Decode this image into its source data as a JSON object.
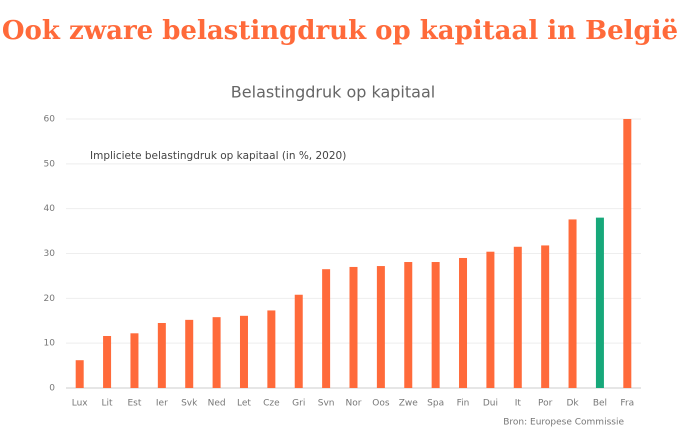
{
  "headline": "Ook zware belastingdruk op kapitaal in België",
  "chart_data": {
    "type": "bar",
    "title": "Belastingdruk op kapitaal",
    "annotation": "Impliciete belastingdruk op kapitaal (in %, 2020)",
    "source": "Bron: Europese Commissie",
    "categories": [
      "Lux",
      "Lit",
      "Est",
      "Ier",
      "Svk",
      "Ned",
      "Let",
      "Cze",
      "Gri",
      "Svn",
      "Nor",
      "Oos",
      "Zwe",
      "Spa",
      "Fin",
      "Dui",
      "It",
      "Por",
      "Dk",
      "Bel",
      "Fra"
    ],
    "values": [
      6.2,
      11.6,
      12.2,
      14.5,
      15.2,
      15.8,
      16.1,
      17.3,
      20.8,
      26.5,
      27.0,
      27.2,
      28.1,
      28.1,
      29.0,
      30.4,
      31.5,
      31.8,
      37.6,
      38.0,
      60.0
    ],
    "colors": [
      "#ff6a3a",
      "#ff6a3a",
      "#ff6a3a",
      "#ff6a3a",
      "#ff6a3a",
      "#ff6a3a",
      "#ff6a3a",
      "#ff6a3a",
      "#ff6a3a",
      "#ff6a3a",
      "#ff6a3a",
      "#ff6a3a",
      "#ff6a3a",
      "#ff6a3a",
      "#ff6a3a",
      "#ff6a3a",
      "#ff6a3a",
      "#ff6a3a",
      "#ff6a3a",
      "#17a87a",
      "#ff6a3a"
    ],
    "ylim": [
      0,
      60
    ],
    "yticks": [
      0,
      10,
      20,
      30,
      40,
      50,
      60
    ],
    "grid": true
  }
}
